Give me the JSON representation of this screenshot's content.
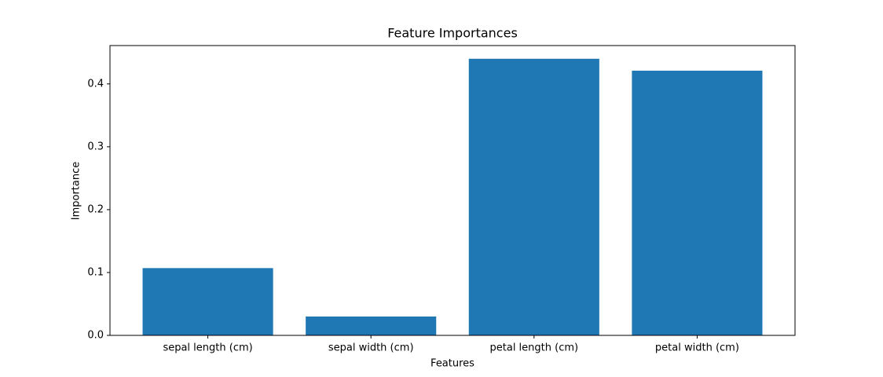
{
  "chart_data": {
    "type": "bar",
    "title": "Feature Importances",
    "x_label": "Features",
    "y_label": "Importance",
    "categories": [
      "sepal length (cm)",
      "sepal width (cm)",
      "petal length (cm)",
      "petal width (cm)"
    ],
    "values": [
      0.107,
      0.03,
      0.44,
      0.421
    ],
    "color": "#1f77b4",
    "ylim": [
      0,
      0.461
    ],
    "yticks": [
      {
        "value": 0,
        "label": "0.0"
      },
      0.1,
      0.2,
      0.3,
      0.4
    ],
    "grid": false
  }
}
